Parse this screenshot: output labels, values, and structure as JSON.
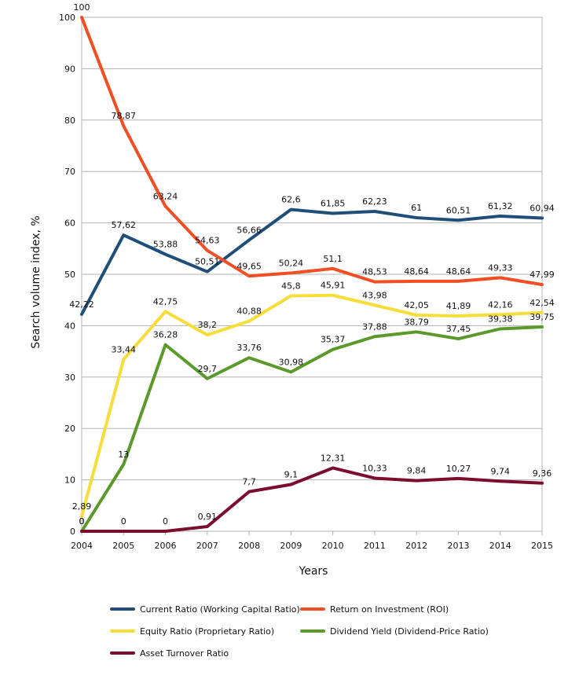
{
  "chart_data": {
    "type": "line",
    "xlabel": "Years",
    "ylabel": "Search volume index, %",
    "ylim": [
      0,
      100
    ],
    "ytick_step": 10,
    "grid": true,
    "legend_position": "bottom",
    "categories": [
      "2004",
      "2005",
      "2006",
      "2007",
      "2008",
      "2009",
      "2010",
      "2011",
      "2012",
      "2013",
      "2014",
      "2015"
    ],
    "series": [
      {
        "name": "Current Ratio (Working Capital Ratio)",
        "color": "#1f4e79",
        "values": [
          42.22,
          57.62,
          53.88,
          50.51,
          56.66,
          62.6,
          61.85,
          62.23,
          61,
          60.51,
          61.32,
          60.94
        ],
        "labels": [
          "42,22",
          "57,62",
          "53,88",
          "50,51",
          "56,66",
          "62,6",
          "61,85",
          "62,23",
          "61",
          "60,51",
          "61,32",
          "60,94"
        ]
      },
      {
        "name": "Return on Investment (ROI)",
        "color": "#f04e23",
        "values": [
          100,
          78.87,
          63.24,
          54.63,
          49.65,
          50.24,
          51.1,
          48.53,
          48.64,
          48.64,
          49.33,
          47.99
        ],
        "labels": [
          "100",
          "78,87",
          "63,24",
          "54,63",
          "49,65",
          "50,24",
          "51,1",
          "48,53",
          "48,64",
          "48,64",
          "49,33",
          "47,99"
        ]
      },
      {
        "name": "Equity Ratio (Proprietary Ratio)",
        "color": "#f7dd3a",
        "values": [
          2.89,
          33.44,
          42.75,
          38.2,
          40.88,
          45.8,
          45.91,
          43.98,
          42.05,
          41.89,
          42.16,
          42.54
        ],
        "labels": [
          "2,89",
          "33,44",
          "42,75",
          "38,2",
          "40,88",
          "45,8",
          "45,91",
          "43,98",
          "42,05",
          "41,89",
          "42,16",
          "42,54"
        ]
      },
      {
        "name": "Dividend Yield (Dividend-Price Ratio)",
        "color": "#5b9a2a",
        "values": [
          0,
          13,
          36.28,
          29.7,
          33.76,
          30.98,
          35.37,
          37.88,
          38.79,
          37.45,
          39.38,
          39.75
        ],
        "labels": [
          "0",
          "13",
          "36,28",
          "29,7",
          "33,76",
          "30,98",
          "35,37",
          "37,88",
          "38,79",
          "37,45",
          "39,38",
          "39,75"
        ]
      },
      {
        "name": "Asset Turnover Ratio",
        "color": "#7b0e2e",
        "values": [
          0,
          0,
          0,
          0.91,
          7.7,
          9.1,
          12.31,
          10.33,
          9.84,
          10.27,
          9.74,
          9.36
        ],
        "labels": [
          "0",
          "0",
          "0",
          "0,91",
          "7,7",
          "9,1",
          "12,31",
          "10,33",
          "9,84",
          "10,27",
          "9,74",
          "9,36"
        ]
      }
    ]
  }
}
